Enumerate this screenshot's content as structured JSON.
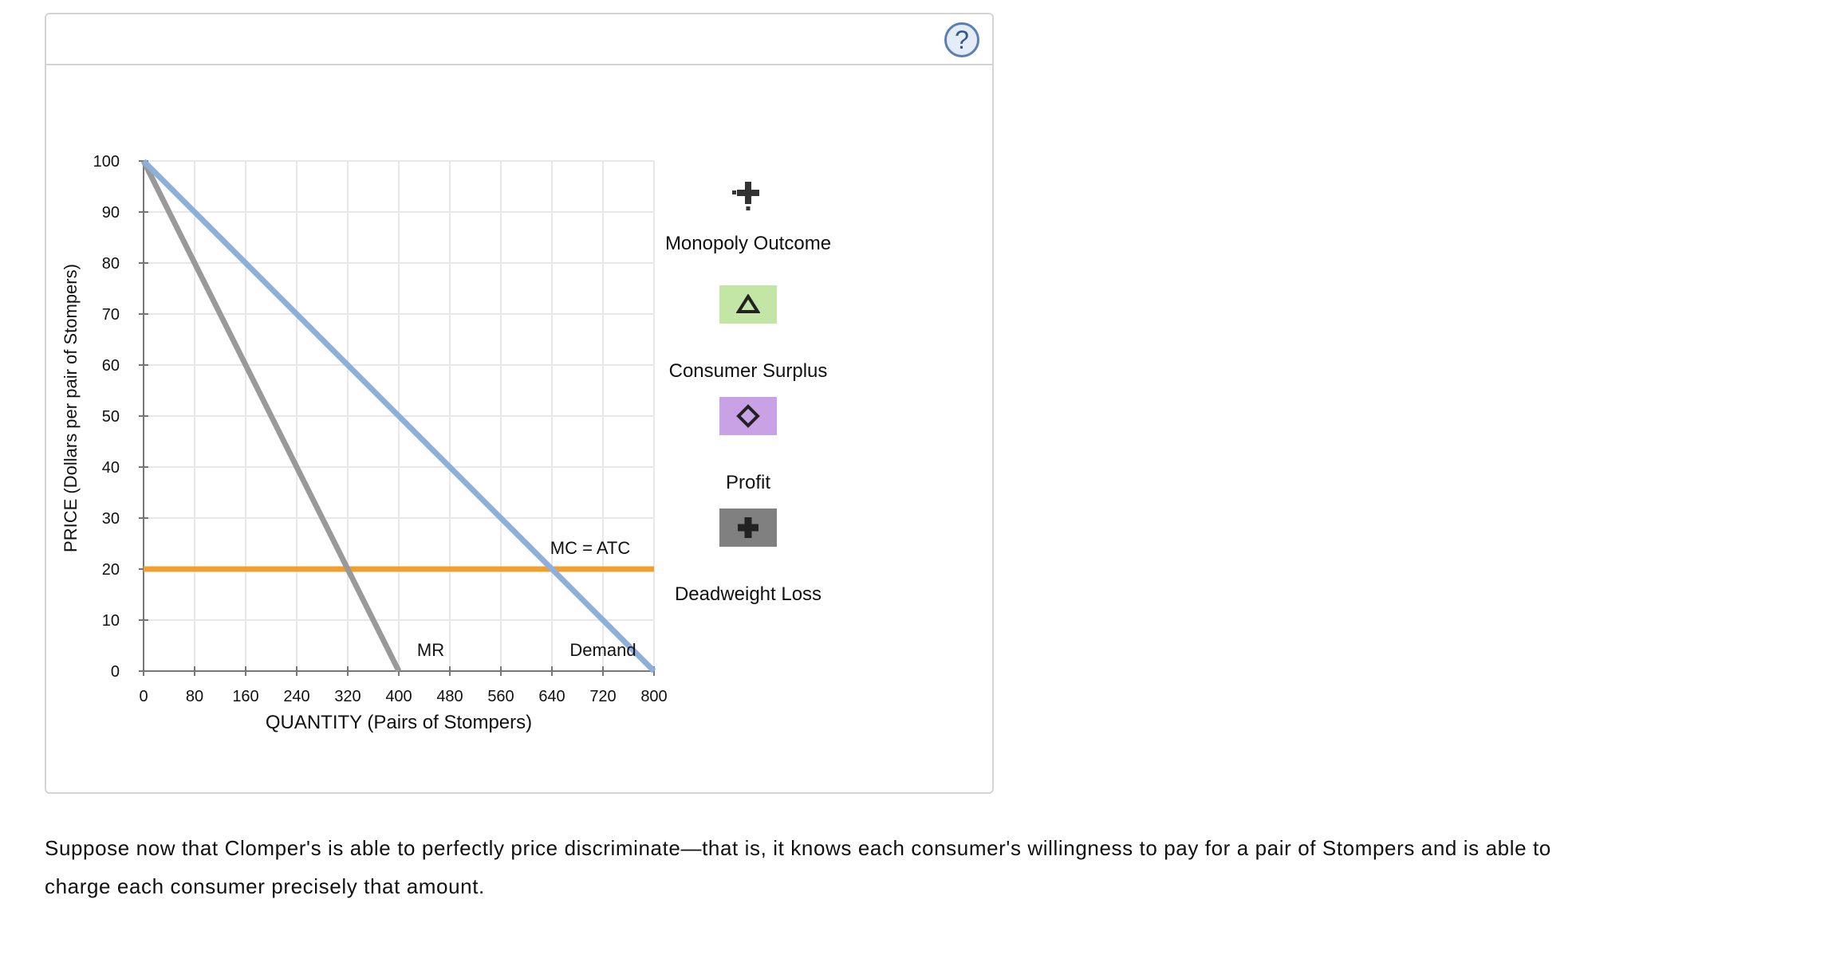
{
  "help": {
    "label": "?"
  },
  "chart_data": {
    "type": "line",
    "xlabel": "QUANTITY (Pairs of Stompers)",
    "ylabel": "PRICE (Dollars per pair of Stompers)",
    "xlim": [
      0,
      800
    ],
    "ylim": [
      0,
      100
    ],
    "x_ticks": [
      0,
      80,
      160,
      240,
      320,
      400,
      480,
      560,
      640,
      720,
      800
    ],
    "y_ticks": [
      0,
      10,
      20,
      30,
      40,
      50,
      60,
      70,
      80,
      90,
      100
    ],
    "grid": true,
    "series": [
      {
        "name": "Demand",
        "label": "Demand",
        "color": "#8eaedb",
        "points": [
          [
            0,
            100
          ],
          [
            800,
            0
          ]
        ]
      },
      {
        "name": "MR",
        "label": "MR",
        "color": "#999999",
        "points": [
          [
            0,
            100
          ],
          [
            400,
            0
          ]
        ]
      },
      {
        "name": "MC = ATC",
        "label": "MC = ATC",
        "color": "#f0a030",
        "points": [
          [
            0,
            20
          ],
          [
            800,
            20
          ]
        ]
      }
    ],
    "series_labels": [
      {
        "text": "MR",
        "x": 450,
        "y": 3
      },
      {
        "text": "Demand",
        "x": 720,
        "y": 3
      },
      {
        "text": "MC = ATC",
        "x": 700,
        "y": 23
      }
    ]
  },
  "palette": {
    "items": [
      {
        "label": "Monopoly Outcome",
        "icon": "plus-dots-icon",
        "color": "#333333"
      },
      {
        "label": "Consumer Surplus",
        "icon": "triangle-icon",
        "color": "#c3e6a6"
      },
      {
        "label": "Profit",
        "icon": "diamond-icon",
        "color": "#c9a2e6"
      },
      {
        "label": "Deadweight Loss",
        "icon": "plus-icon",
        "color": "#808080"
      }
    ]
  },
  "prompt": {
    "text": "Suppose now that Clomper's is able to perfectly price discriminate—that is, it knows each consumer's willingness to pay for a pair of Stompers and is able to charge each consumer precisely that amount."
  }
}
